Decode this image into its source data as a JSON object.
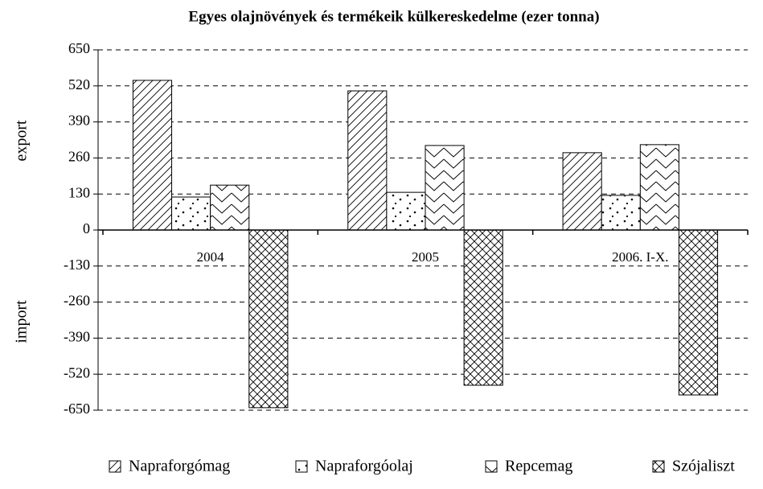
{
  "chart_data": {
    "type": "bar",
    "title": "Egyes olajnövények és termékeik külkereskedelme (ezer tonna)",
    "axis_labels": [
      "export",
      "import"
    ],
    "categories": [
      "2004",
      "2005",
      "2006. I-X."
    ],
    "series": [
      {
        "name": "Napraforgómag",
        "color": "#000000",
        "pattern": "diagonal",
        "values": [
          540,
          502,
          279
        ]
      },
      {
        "name": "Napraforgóolaj",
        "color": "#000000",
        "pattern": "dots",
        "values": [
          119,
          136,
          125
        ]
      },
      {
        "name": "Repcemag",
        "color": "#000000",
        "pattern": "zigzag",
        "values": [
          162,
          305,
          308
        ]
      },
      {
        "name": "Szójaliszt",
        "color": "#000000",
        "pattern": "crosshatch",
        "values": [
          -641,
          -560,
          -595
        ]
      }
    ],
    "ylim": [
      -650,
      650
    ],
    "yticks": [
      -650,
      -520,
      -390,
      -260,
      -130,
      0,
      130,
      260,
      390,
      520,
      650
    ],
    "grid": true,
    "legend": "bottom"
  }
}
